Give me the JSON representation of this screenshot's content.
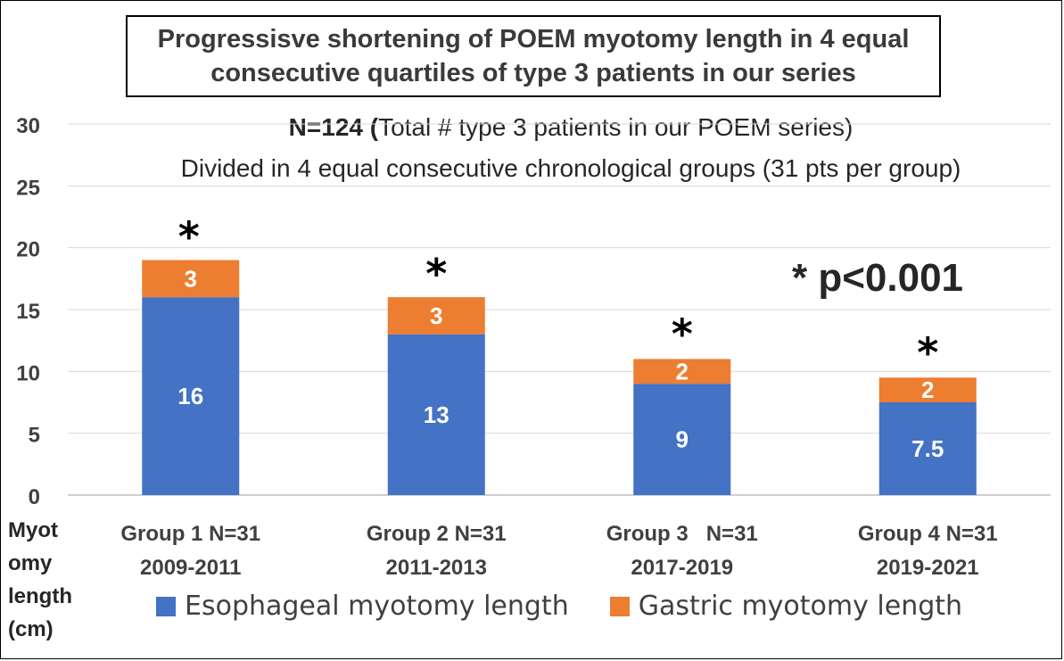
{
  "title": {
    "line1": "Progressisve shortening of POEM myotomy length in 4 equal",
    "line2": "consecutive quartiles of type 3 patients in our series"
  },
  "subtitle": {
    "n_bold": "N=124 (",
    "n_rest": "Total # type 3 patients in our POEM series)",
    "line2": "Divided in 4 equal consecutive chronological groups (31 pts per group)"
  },
  "significance_text": "* p<0.001",
  "ylabel_lines": [
    "Myot",
    "omy",
    "length",
    "(cm)"
  ],
  "chart_data": {
    "type": "bar",
    "stacked": true,
    "categories": [
      [
        "Group 1 N=31",
        "2009-2011"
      ],
      [
        "Group 2 N=31",
        "2011-2013"
      ],
      [
        "Group 3   N=31",
        "2017-2019"
      ],
      [
        "Group 4 N=31",
        "2019-2021"
      ]
    ],
    "series": [
      {
        "name": "Esophageal myotomy length",
        "values": [
          16,
          13,
          9,
          7.5
        ],
        "labels": [
          "16",
          "13",
          "9",
          "7.5"
        ],
        "color": "#4472c4"
      },
      {
        "name": "Gastric myotomy length",
        "values": [
          3,
          3,
          2,
          2
        ],
        "labels": [
          "3",
          "3",
          "2",
          "2"
        ],
        "color": "#ed7d31"
      }
    ],
    "significance_markers": [
      "*",
      "*",
      "*",
      "*"
    ],
    "ylim": [
      0,
      30
    ],
    "yticks": [
      0,
      5,
      10,
      15,
      20,
      25,
      30
    ],
    "grid": true,
    "legend_position": "bottom"
  }
}
